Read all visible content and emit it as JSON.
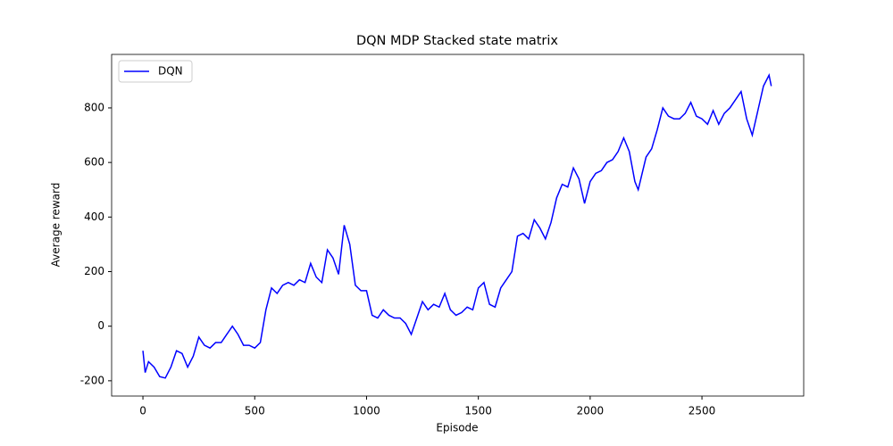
{
  "chart_data": {
    "type": "line",
    "title": "DQN MDP Stacked state matrix",
    "x_label": "Episode",
    "y_label": "Average reward",
    "x": [
      0,
      10,
      25,
      50,
      75,
      100,
      125,
      150,
      175,
      200,
      225,
      250,
      275,
      300,
      325,
      350,
      375,
      400,
      425,
      450,
      475,
      500,
      525,
      550,
      575,
      600,
      625,
      650,
      675,
      700,
      725,
      750,
      775,
      800,
      825,
      850,
      875,
      900,
      925,
      950,
      975,
      1000,
      1025,
      1050,
      1075,
      1100,
      1125,
      1150,
      1175,
      1200,
      1225,
      1250,
      1275,
      1300,
      1325,
      1350,
      1375,
      1400,
      1425,
      1450,
      1475,
      1500,
      1525,
      1550,
      1575,
      1600,
      1625,
      1650,
      1675,
      1700,
      1725,
      1750,
      1775,
      1800,
      1825,
      1850,
      1875,
      1900,
      1925,
      1950,
      1975,
      2000,
      2025,
      2050,
      2075,
      2100,
      2125,
      2150,
      2175,
      2200,
      2215,
      2250,
      2275,
      2300,
      2325,
      2350,
      2375,
      2400,
      2425,
      2450,
      2475,
      2500,
      2525,
      2550,
      2575,
      2600,
      2625,
      2650,
      2675,
      2700,
      2725,
      2750,
      2775,
      2800,
      2810
    ],
    "series": [
      {
        "name": "DQN",
        "color": "#0000ff",
        "values": [
          -90,
          -170,
          -130,
          -150,
          -185,
          -190,
          -150,
          -90,
          -100,
          -150,
          -110,
          -40,
          -70,
          -80,
          -60,
          -60,
          -30,
          0,
          -30,
          -70,
          -70,
          -80,
          -60,
          60,
          140,
          120,
          150,
          160,
          150,
          170,
          160,
          230,
          180,
          160,
          280,
          250,
          190,
          370,
          300,
          150,
          130,
          130,
          40,
          30,
          60,
          40,
          30,
          30,
          10,
          -30,
          30,
          90,
          60,
          80,
          70,
          120,
          60,
          40,
          50,
          70,
          60,
          140,
          160,
          80,
          70,
          140,
          170,
          200,
          330,
          340,
          320,
          390,
          360,
          320,
          380,
          470,
          520,
          510,
          580,
          540,
          450,
          530,
          560,
          570,
          600,
          610,
          640,
          690,
          640,
          530,
          500,
          620,
          650,
          720,
          800,
          770,
          760,
          760,
          780,
          820,
          770,
          760,
          740,
          790,
          740,
          780,
          800,
          830,
          860,
          760,
          700,
          790,
          880,
          920,
          880
        ]
      }
    ],
    "xlim": [
      -140,
      2955
    ],
    "ylim": [
      -256,
      996
    ],
    "xticks": [
      0,
      500,
      1000,
      1500,
      2000,
      2500
    ],
    "yticks": [
      -200,
      0,
      200,
      400,
      600,
      800
    ],
    "legend": "upper left"
  }
}
